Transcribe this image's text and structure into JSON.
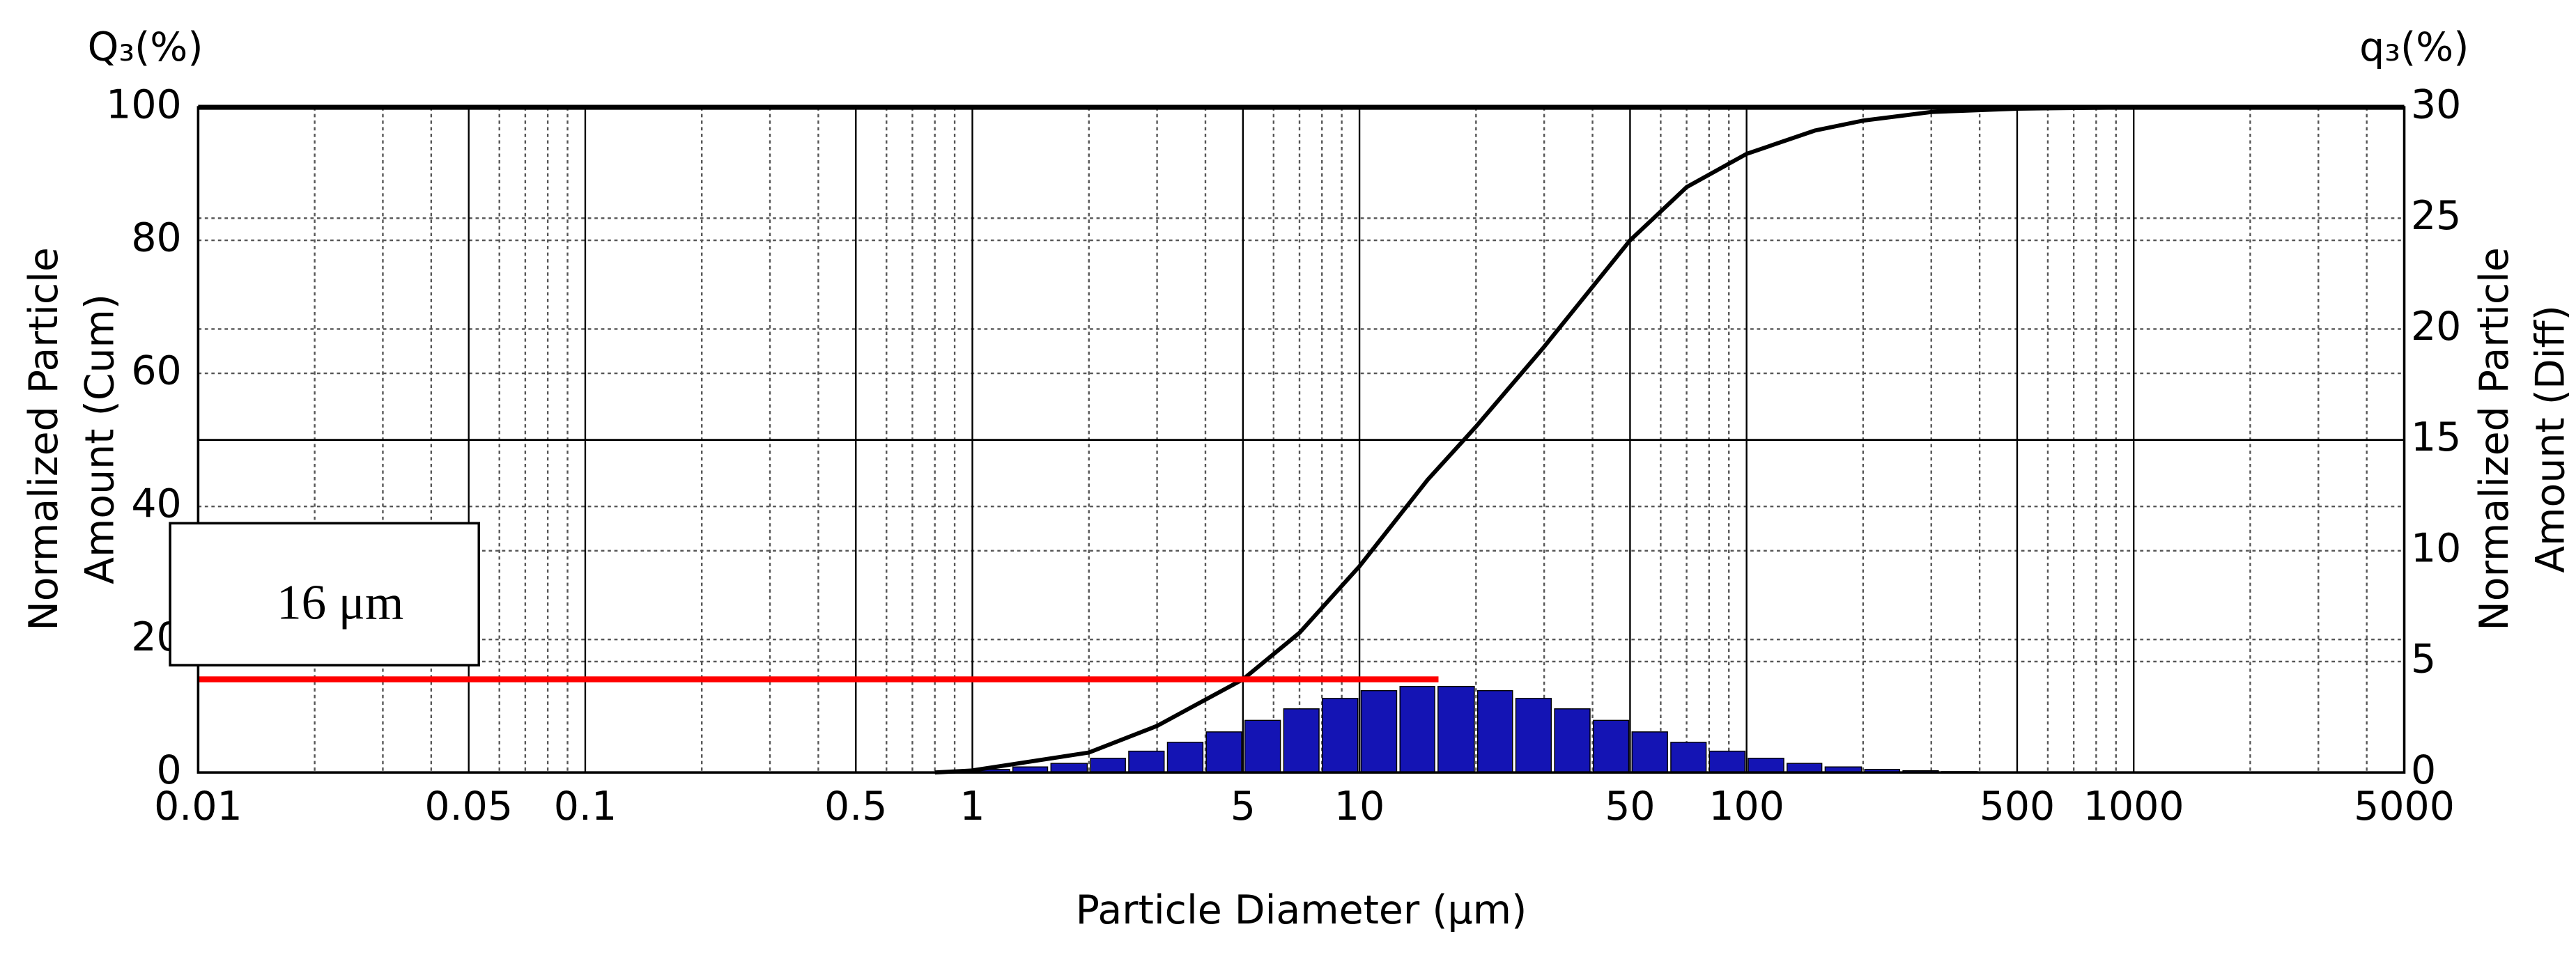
{
  "chart_data": {
    "type": "combo",
    "top_left_label": "Q₃(%)",
    "top_right_label": "q₃(%)",
    "xlabel": "Particle Diameter (µm)",
    "ylabel": [
      "Normalized Particle",
      "Amount (Cum)"
    ],
    "y2label": [
      "Normalized Particle",
      "Amount (Diff)"
    ],
    "xscale": "log",
    "xlim": [
      0.01,
      5000
    ],
    "xticks": [
      0.01,
      0.05,
      0.1,
      0.5,
      1,
      5,
      10,
      50,
      100,
      500,
      1000,
      5000
    ],
    "minor_xticks": [
      0.02,
      0.03,
      0.04,
      0.06,
      0.07,
      0.08,
      0.09,
      0.2,
      0.3,
      0.4,
      0.6,
      0.7,
      0.8,
      0.9,
      2,
      3,
      4,
      6,
      7,
      8,
      9,
      20,
      30,
      40,
      60,
      70,
      80,
      90,
      200,
      300,
      400,
      600,
      700,
      800,
      900,
      2000,
      3000,
      4000
    ],
    "ylim": [
      0,
      100
    ],
    "yticks": [
      0,
      20,
      40,
      60,
      80,
      100
    ],
    "y2lim": [
      0,
      30
    ],
    "y2ticks": [
      0,
      5,
      10,
      15,
      20,
      25,
      30
    ],
    "grid": true,
    "reference_line": 50,
    "marker_line": {
      "y": 14,
      "x": [
        0.01,
        16
      ],
      "color": "#ff0000"
    },
    "annotation": "16 μm",
    "series": [
      {
        "type": "line",
        "color": "#000000",
        "x": [
          0.8,
          1,
          2,
          3,
          5,
          7,
          10,
          15,
          20,
          30,
          50,
          70,
          100,
          150,
          200,
          300,
          500,
          1000,
          3000
        ],
        "values": [
          0,
          0.3,
          3,
          7,
          14,
          21,
          31,
          44,
          52,
          64,
          80,
          88,
          93,
          96.5,
          98,
          99.3,
          99.8,
          100,
          100
        ]
      },
      {
        "type": "bar",
        "axis": "y2",
        "color": "#1414b4",
        "bins": [
          1,
          1.26,
          1.58,
          2,
          2.51,
          3.16,
          3.98,
          5.01,
          6.31,
          7.94,
          10,
          12.6,
          15.8,
          20,
          25.1,
          31.6,
          39.8,
          50.1,
          63.1,
          79.4,
          100,
          126,
          158,
          200,
          251,
          316,
          398
        ],
        "values": [
          0.14,
          0.25,
          0.41,
          0.64,
          0.96,
          1.36,
          1.83,
          2.35,
          2.87,
          3.34,
          3.69,
          3.88,
          3.88,
          3.69,
          3.34,
          2.87,
          2.35,
          1.83,
          1.36,
          0.96,
          0.64,
          0.41,
          0.25,
          0.14,
          0.08,
          0.04
        ]
      }
    ]
  }
}
